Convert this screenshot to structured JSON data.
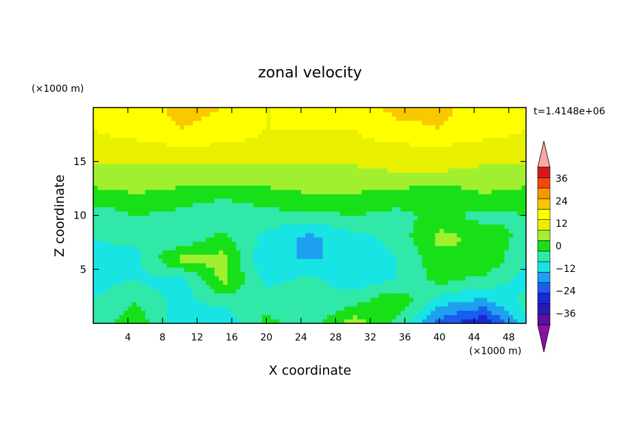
{
  "chart_data": {
    "type": "heatmap",
    "title": "zonal velocity",
    "xlabel": "X coordinate",
    "ylabel": "Z coordinate",
    "x_unit": "(×1000 m)",
    "y_unit": "(×1000 m)",
    "time_label": "t=1.4148e+06",
    "xlim": [
      0,
      50
    ],
    "ylim": [
      0,
      20
    ],
    "x_ticks": [
      4,
      8,
      12,
      16,
      20,
      24,
      28,
      32,
      36,
      40,
      44,
      48
    ],
    "y_ticks": [
      5,
      10,
      15
    ],
    "x_tick_labels": [
      "4",
      "8",
      "12",
      "16",
      "20",
      "24",
      "28",
      "32",
      "36",
      "40",
      "44",
      "48"
    ],
    "y_tick_labels": [
      "5",
      "10",
      "15"
    ],
    "colorbar": {
      "levels": [
        -42,
        -36,
        -30,
        -24,
        -18,
        -12,
        -6,
        0,
        6,
        12,
        18,
        24,
        30,
        36,
        42
      ],
      "labels": [
        "36",
        "24",
        "12",
        "0",
        "-12",
        "-24",
        "-36"
      ],
      "label_values": [
        36,
        24,
        12,
        0,
        -12,
        -24,
        -36
      ],
      "colors": [
        "#5a0fa0",
        "#2a1ab0",
        "#1a28d8",
        "#1a5cf0",
        "#1ea0f0",
        "#18e4e4",
        "#30e8a8",
        "#18e018",
        "#a0f030",
        "#e8f000",
        "#ffff00",
        "#f8c800",
        "#f89800",
        "#f04810",
        "#d81818"
      ],
      "under_color": "#8a10a8",
      "over_color": "#f8a8a8"
    },
    "z_values_description_free": true,
    "grid_x": [
      0,
      5,
      10,
      15,
      20,
      25,
      30,
      35,
      40,
      45,
      50
    ],
    "grid_z": [
      0,
      2,
      4,
      6,
      8,
      10,
      12,
      14,
      16,
      18,
      20
    ],
    "z_values": [
      [
        -3,
        4,
        -10,
        -12,
        2,
        -4,
        10,
        -2,
        -20,
        -30,
        -8
      ],
      [
        -6,
        0,
        -8,
        -4,
        -2,
        -6,
        -2,
        6,
        -10,
        -14,
        -4
      ],
      [
        -8,
        -6,
        -10,
        8,
        -8,
        -4,
        -10,
        -6,
        2,
        -2,
        -8
      ],
      [
        -8,
        -8,
        8,
        8,
        -12,
        -12,
        -12,
        -6,
        4,
        6,
        -6
      ],
      [
        -6,
        -4,
        -6,
        2,
        -8,
        -14,
        -8,
        -4,
        8,
        4,
        -2
      ],
      [
        -4,
        0,
        -2,
        -6,
        -2,
        -2,
        0,
        -2,
        2,
        -2,
        0
      ],
      [
        4,
        6,
        4,
        2,
        4,
        6,
        6,
        4,
        2,
        6,
        4
      ],
      [
        10,
        10,
        10,
        10,
        10,
        10,
        10,
        12,
        12,
        10,
        10
      ],
      [
        16,
        16,
        16,
        16,
        16,
        16,
        16,
        16,
        16,
        16,
        16
      ],
      [
        18,
        20,
        24,
        22,
        18,
        18,
        18,
        22,
        24,
        20,
        18
      ],
      [
        18,
        20,
        26,
        24,
        18,
        18,
        20,
        26,
        26,
        20,
        18
      ]
    ]
  }
}
